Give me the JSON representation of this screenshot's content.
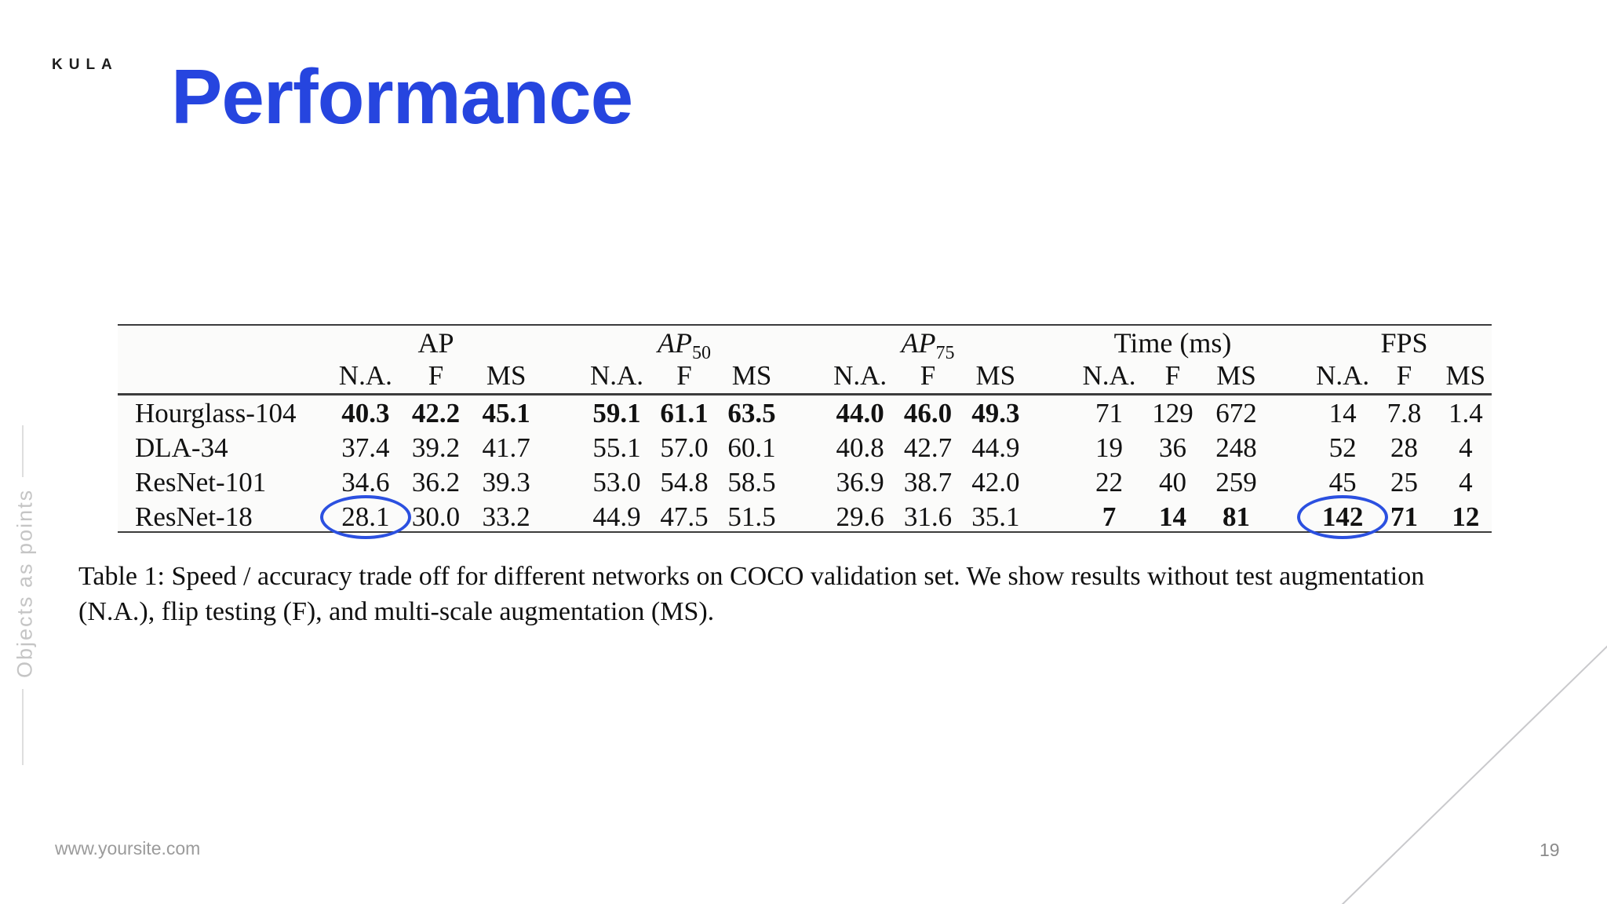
{
  "brand": "KULA",
  "page_title": "Performance",
  "sidebar_text": "Objects as points",
  "footer": {
    "website": "www.yoursite.com",
    "page_number": "19"
  },
  "colors": {
    "title_blue": "#2645df",
    "annotation_blue": "#2b50e0",
    "muted_gray": "#c5c5c5",
    "line_gray": "#c9c9cc"
  },
  "table": {
    "groups": [
      {
        "label": "AP",
        "sub": "",
        "italic": false
      },
      {
        "label": "AP",
        "sub": "50",
        "italic": true
      },
      {
        "label": "AP",
        "sub": "75",
        "italic": true
      },
      {
        "label": "Time (ms)",
        "sub": "",
        "italic": false
      },
      {
        "label": "FPS",
        "sub": "",
        "italic": false
      }
    ],
    "subcolumns": [
      "N.A.",
      "F",
      "MS"
    ],
    "rows": [
      {
        "name": "Hourglass-104",
        "values": [
          "40.3",
          "42.2",
          "45.1",
          "59.1",
          "61.1",
          "63.5",
          "44.0",
          "46.0",
          "49.3",
          "71",
          "129",
          "672",
          "14",
          "7.8",
          "1.4"
        ],
        "bold": [
          true,
          true,
          true,
          true,
          true,
          true,
          true,
          true,
          true,
          false,
          false,
          false,
          false,
          false,
          false
        ]
      },
      {
        "name": "DLA-34",
        "values": [
          "37.4",
          "39.2",
          "41.7",
          "55.1",
          "57.0",
          "60.1",
          "40.8",
          "42.7",
          "44.9",
          "19",
          "36",
          "248",
          "52",
          "28",
          "4"
        ],
        "bold": [
          false,
          false,
          false,
          false,
          false,
          false,
          false,
          false,
          false,
          false,
          false,
          false,
          false,
          false,
          false
        ]
      },
      {
        "name": "ResNet-101",
        "values": [
          "34.6",
          "36.2",
          "39.3",
          "53.0",
          "54.8",
          "58.5",
          "36.9",
          "38.7",
          "42.0",
          "22",
          "40",
          "259",
          "45",
          "25",
          "4"
        ],
        "bold": [
          false,
          false,
          false,
          false,
          false,
          false,
          false,
          false,
          false,
          false,
          false,
          false,
          false,
          false,
          false
        ]
      },
      {
        "name": "ResNet-18",
        "values": [
          "28.1",
          "30.0",
          "33.2",
          "44.9",
          "47.5",
          "51.5",
          "29.6",
          "31.6",
          "35.1",
          "7",
          "14",
          "81",
          "142",
          "71",
          "12"
        ],
        "bold": [
          false,
          false,
          false,
          false,
          false,
          false,
          false,
          false,
          false,
          true,
          true,
          true,
          true,
          true,
          true
        ]
      }
    ],
    "circled": [
      {
        "row": 3,
        "col": 0
      },
      {
        "row": 3,
        "col": 12
      }
    ],
    "caption_line1": "Table 1: Speed / accuracy trade off for different networks on COCO validation set. We show results without test augmentation",
    "caption_line2": "(N.A.), flip testing (F), and multi-scale augmentation (MS)."
  }
}
